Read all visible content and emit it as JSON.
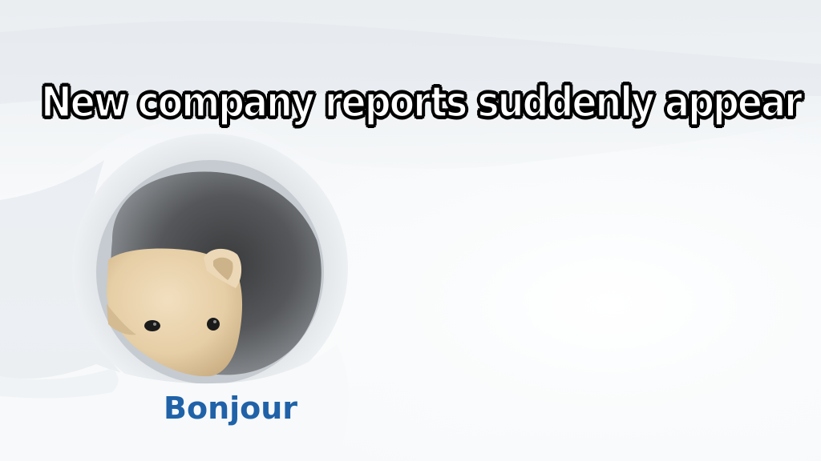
{
  "meme": {
    "caption": "New company reports suddenly appear",
    "label": "Bonjour"
  },
  "colors": {
    "caption_fill": "#ffffff",
    "caption_outline": "#000000",
    "label_color": "#1f62a8",
    "snow": "#f6f8fa",
    "fur": "#e8d2ad"
  }
}
